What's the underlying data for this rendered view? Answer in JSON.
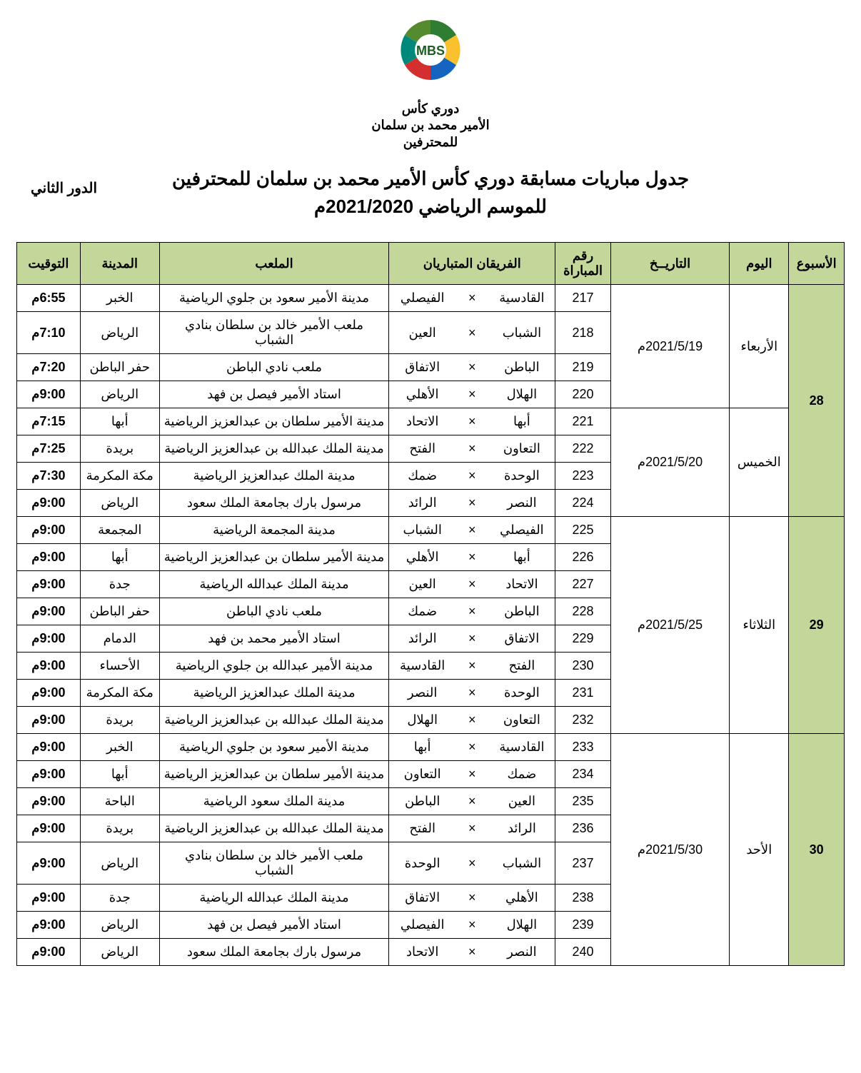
{
  "logo": {
    "line1": "دوري كأس",
    "line2": "الأمير محمد بن سلمان",
    "line3": "للمحترفين",
    "badge": "MBS"
  },
  "title": {
    "line1": "جدول مباريات مسابقة دوري كأس الأمير محمد بن سلمان للمحترفين",
    "line2": "للموسم الرياضي 2021/2020م"
  },
  "round_label": "الدور الثاني",
  "headers": {
    "week": "الأسبوع",
    "day": "اليوم",
    "date": "التاريــخ",
    "match_no": "رقم المباراة",
    "teams": "الفريقان المتباريان",
    "stadium": "الملعب",
    "city": "المدينة",
    "time": "التوقيت"
  },
  "style": {
    "header_bg": "#c4d79b",
    "border_color": "#000000",
    "text_color": "#000000",
    "bg": "#ffffff",
    "title_fontsize": 26,
    "header_fontsize": 18,
    "cell_fontsize": 18
  },
  "weeks": [
    {
      "week": "28",
      "groups": [
        {
          "day": "الأربعاء",
          "date": "2021/5/19م",
          "matches": [
            {
              "no": "217",
              "home": "القادسية",
              "away": "الفيصلي",
              "stadium": "مدينة الأمير سعود بن جلوي الرياضية",
              "city": "الخبر",
              "time": "6:55م"
            },
            {
              "no": "218",
              "home": "الشباب",
              "away": "العين",
              "stadium": "ملعب الأمير خالد بن سلطان بنادي الشباب",
              "city": "الرياض",
              "time": "7:10م"
            },
            {
              "no": "219",
              "home": "الباطن",
              "away": "الاتفاق",
              "stadium": "ملعب نادي الباطن",
              "city": "حفر الباطن",
              "time": "7:20م"
            },
            {
              "no": "220",
              "home": "الهلال",
              "away": "الأهلي",
              "stadium": "استاد الأمير فيصل بن فهد",
              "city": "الرياض",
              "time": "9:00م"
            }
          ]
        },
        {
          "day": "الخميس",
          "date": "2021/5/20م",
          "matches": [
            {
              "no": "221",
              "home": "أبها",
              "away": "الاتحاد",
              "stadium": "مدينة الأمير سلطان بن عبدالعزيز الرياضية",
              "city": "أبها",
              "time": "7:15م"
            },
            {
              "no": "222",
              "home": "التعاون",
              "away": "الفتح",
              "stadium": "مدينة الملك عبدالله بن عبدالعزيز الرياضية",
              "city": "بريدة",
              "time": "7:25م"
            },
            {
              "no": "223",
              "home": "الوحدة",
              "away": "ضمك",
              "stadium": "مدينة الملك عبدالعزيز الرياضية",
              "city": "مكة المكرمة",
              "time": "7:30م"
            },
            {
              "no": "224",
              "home": "النصر",
              "away": "الرائد",
              "stadium": "مرسول بارك بجامعة الملك سعود",
              "city": "الرياض",
              "time": "9:00م"
            }
          ]
        }
      ]
    },
    {
      "week": "29",
      "groups": [
        {
          "day": "الثلاثاء",
          "date": "2021/5/25م",
          "matches": [
            {
              "no": "225",
              "home": "الفيصلي",
              "away": "الشباب",
              "stadium": "مدينة المجمعة الرياضية",
              "city": "المجمعة",
              "time": "9:00م"
            },
            {
              "no": "226",
              "home": "أبها",
              "away": "الأهلي",
              "stadium": "مدينة الأمير سلطان بن عبدالعزيز الرياضية",
              "city": "أبها",
              "time": "9:00م"
            },
            {
              "no": "227",
              "home": "الاتحاد",
              "away": "العين",
              "stadium": "مدينة الملك عبدالله الرياضية",
              "city": "جدة",
              "time": "9:00م"
            },
            {
              "no": "228",
              "home": "الباطن",
              "away": "ضمك",
              "stadium": "ملعب نادي الباطن",
              "city": "حفر الباطن",
              "time": "9:00م"
            },
            {
              "no": "229",
              "home": "الاتفاق",
              "away": "الرائد",
              "stadium": "استاد الأمير محمد بن فهد",
              "city": "الدمام",
              "time": "9:00م"
            },
            {
              "no": "230",
              "home": "الفتح",
              "away": "القادسية",
              "stadium": "مدينة الأمير عبدالله بن جلوي الرياضية",
              "city": "الأحساء",
              "time": "9:00م"
            },
            {
              "no": "231",
              "home": "الوحدة",
              "away": "النصر",
              "stadium": "مدينة الملك عبدالعزيز الرياضية",
              "city": "مكة المكرمة",
              "time": "9:00م"
            },
            {
              "no": "232",
              "home": "التعاون",
              "away": "الهلال",
              "stadium": "مدينة الملك عبدالله بن عبدالعزيز الرياضية",
              "city": "بريدة",
              "time": "9:00م"
            }
          ]
        }
      ]
    },
    {
      "week": "30",
      "groups": [
        {
          "day": "الأحد",
          "date": "2021/5/30م",
          "matches": [
            {
              "no": "233",
              "home": "القادسية",
              "away": "أبها",
              "stadium": "مدينة الأمير سعود بن جلوي الرياضية",
              "city": "الخبر",
              "time": "9:00م"
            },
            {
              "no": "234",
              "home": "ضمك",
              "away": "التعاون",
              "stadium": "مدينة الأمير سلطان بن عبدالعزيز الرياضية",
              "city": "أبها",
              "time": "9:00م"
            },
            {
              "no": "235",
              "home": "العين",
              "away": "الباطن",
              "stadium": "مدينة الملك سعود الرياضية",
              "city": "الباحة",
              "time": "9:00م"
            },
            {
              "no": "236",
              "home": "الرائد",
              "away": "الفتح",
              "stadium": "مدينة الملك عبدالله بن عبدالعزيز الرياضية",
              "city": "بريدة",
              "time": "9:00م"
            },
            {
              "no": "237",
              "home": "الشباب",
              "away": "الوحدة",
              "stadium": "ملعب الأمير خالد بن سلطان بنادي الشباب",
              "city": "الرياض",
              "time": "9:00م"
            },
            {
              "no": "238",
              "home": "الأهلي",
              "away": "الاتفاق",
              "stadium": "مدينة الملك عبدالله الرياضية",
              "city": "جدة",
              "time": "9:00م"
            },
            {
              "no": "239",
              "home": "الهلال",
              "away": "الفيصلي",
              "stadium": "استاد الأمير فيصل بن فهد",
              "city": "الرياض",
              "time": "9:00م"
            },
            {
              "no": "240",
              "home": "النصر",
              "away": "الاتحاد",
              "stadium": "مرسول بارك بجامعة الملك سعود",
              "city": "الرياض",
              "time": "9:00م"
            }
          ]
        }
      ]
    }
  ]
}
